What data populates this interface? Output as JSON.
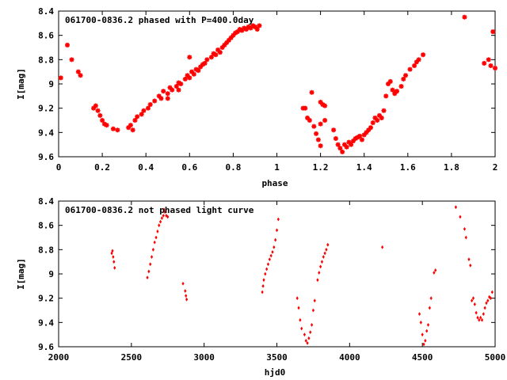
{
  "colors": {
    "points": "#ff0000",
    "axes": "#000000",
    "background": "#ffffff"
  },
  "chart_data": [
    {
      "type": "scatter",
      "title": "061700-0836.2 phased with P=400.0day",
      "xlabel": "phase",
      "ylabel": "I[mag]",
      "xlim": [
        0,
        2
      ],
      "ylim": [
        9.6,
        8.4
      ],
      "y_inverted": true,
      "xticks": [
        "0",
        "0.2",
        "0.4",
        "0.6",
        "0.8",
        "1",
        "1.2",
        "1.4",
        "1.6",
        "1.8",
        "2"
      ],
      "yticks": [
        "8.4",
        "8.6",
        "8.8",
        "9",
        "9.2",
        "9.4",
        "9.6"
      ],
      "grid": false,
      "marker": "star",
      "series": [
        {
          "points": [
            [
              0.01,
              8.95
            ],
            [
              0.04,
              8.68
            ],
            [
              0.06,
              8.8
            ],
            [
              0.09,
              8.9
            ],
            [
              0.1,
              8.93
            ],
            [
              0.16,
              9.2
            ],
            [
              0.17,
              9.18
            ],
            [
              0.18,
              9.22
            ],
            [
              0.19,
              9.26
            ],
            [
              0.2,
              9.3
            ],
            [
              0.21,
              9.33
            ],
            [
              0.22,
              9.34
            ],
            [
              0.25,
              9.37
            ],
            [
              0.27,
              9.38
            ],
            [
              0.32,
              9.36
            ],
            [
              0.33,
              9.34
            ],
            [
              0.34,
              9.38
            ],
            [
              0.35,
              9.3
            ],
            [
              0.36,
              9.27
            ],
            [
              0.38,
              9.25
            ],
            [
              0.39,
              9.22
            ],
            [
              0.41,
              9.2
            ],
            [
              0.42,
              9.17
            ],
            [
              0.44,
              9.14
            ],
            [
              0.46,
              9.1
            ],
            [
              0.47,
              9.12
            ],
            [
              0.48,
              9.06
            ],
            [
              0.5,
              9.08
            ],
            [
              0.51,
              9.03
            ],
            [
              0.52,
              9.05
            ],
            [
              0.54,
              9.02
            ],
            [
              0.55,
              8.99
            ],
            [
              0.56,
              9.0
            ],
            [
              0.58,
              8.96
            ],
            [
              0.59,
              8.93
            ],
            [
              0.6,
              8.95
            ],
            [
              0.61,
              8.9
            ],
            [
              0.62,
              8.92
            ],
            [
              0.63,
              8.88
            ],
            [
              0.64,
              8.89
            ],
            [
              0.65,
              8.86
            ],
            [
              0.66,
              8.84
            ],
            [
              0.67,
              8.83
            ],
            [
              0.68,
              8.8
            ],
            [
              0.7,
              8.78
            ],
            [
              0.71,
              8.75
            ],
            [
              0.72,
              8.76
            ],
            [
              0.73,
              8.72
            ],
            [
              0.74,
              8.74
            ],
            [
              0.75,
              8.7
            ],
            [
              0.76,
              8.68
            ],
            [
              0.77,
              8.66
            ],
            [
              0.78,
              8.64
            ],
            [
              0.79,
              8.62
            ],
            [
              0.8,
              8.6
            ],
            [
              0.81,
              8.58
            ],
            [
              0.82,
              8.57
            ],
            [
              0.83,
              8.55
            ],
            [
              0.84,
              8.56
            ],
            [
              0.85,
              8.54
            ],
            [
              0.86,
              8.55
            ],
            [
              0.87,
              8.53
            ],
            [
              0.88,
              8.54
            ],
            [
              0.89,
              8.52
            ],
            [
              0.9,
              8.53
            ],
            [
              0.91,
              8.55
            ],
            [
              0.92,
              8.52
            ],
            [
              0.6,
              8.78
            ],
            [
              0.55,
              9.05
            ],
            [
              0.5,
              9.12
            ],
            [
              1.12,
              9.2
            ],
            [
              1.13,
              9.2
            ],
            [
              1.14,
              9.28
            ],
            [
              1.15,
              9.3
            ],
            [
              1.16,
              9.07
            ],
            [
              1.17,
              9.35
            ],
            [
              1.18,
              9.41
            ],
            [
              1.19,
              9.46
            ],
            [
              1.2,
              9.15
            ],
            [
              1.21,
              9.17
            ],
            [
              1.22,
              9.18
            ],
            [
              1.2,
              9.33
            ],
            [
              1.2,
              9.51
            ],
            [
              1.22,
              9.3
            ],
            [
              1.26,
              9.38
            ],
            [
              1.27,
              9.45
            ],
            [
              1.28,
              9.5
            ],
            [
              1.29,
              9.53
            ],
            [
              1.3,
              9.56
            ],
            [
              1.31,
              9.5
            ],
            [
              1.32,
              9.52
            ],
            [
              1.33,
              9.48
            ],
            [
              1.34,
              9.5
            ],
            [
              1.35,
              9.47
            ],
            [
              1.36,
              9.45
            ],
            [
              1.37,
              9.44
            ],
            [
              1.38,
              9.43
            ],
            [
              1.39,
              9.46
            ],
            [
              1.4,
              9.42
            ],
            [
              1.41,
              9.4
            ],
            [
              1.42,
              9.38
            ],
            [
              1.43,
              9.36
            ],
            [
              1.44,
              9.32
            ],
            [
              1.45,
              9.28
            ],
            [
              1.46,
              9.3
            ],
            [
              1.47,
              9.26
            ],
            [
              1.48,
              9.28
            ],
            [
              1.49,
              9.22
            ],
            [
              1.5,
              9.1
            ],
            [
              1.51,
              9.0
            ],
            [
              1.52,
              8.98
            ],
            [
              1.53,
              9.05
            ],
            [
              1.54,
              9.08
            ],
            [
              1.55,
              9.06
            ],
            [
              1.57,
              9.02
            ],
            [
              1.58,
              8.96
            ],
            [
              1.59,
              8.93
            ],
            [
              1.61,
              8.88
            ],
            [
              1.63,
              8.85
            ],
            [
              1.64,
              8.82
            ],
            [
              1.65,
              8.8
            ],
            [
              1.67,
              8.76
            ],
            [
              1.86,
              8.45
            ],
            [
              1.95,
              8.83
            ],
            [
              1.97,
              8.8
            ],
            [
              1.98,
              8.85
            ],
            [
              1.99,
              8.57
            ],
            [
              2.0,
              8.87
            ]
          ]
        }
      ]
    },
    {
      "type": "scatter",
      "title": "061700-0836.2 not phased light curve",
      "xlabel": "hjd0",
      "ylabel": "I[mag]",
      "xlim": [
        2000,
        5000
      ],
      "ylim": [
        9.6,
        8.4
      ],
      "y_inverted": true,
      "xticks": [
        "2000",
        "2500",
        "3000",
        "3500",
        "4000",
        "4500",
        "5000"
      ],
      "yticks": [
        "8.4",
        "8.6",
        "8.8",
        "9",
        "9.2",
        "9.4",
        "9.6"
      ],
      "grid": false,
      "marker": "diamond",
      "series": [
        {
          "points": [
            [
              2365,
              8.83
            ],
            [
              2370,
              8.81
            ],
            [
              2375,
              8.86
            ],
            [
              2380,
              8.9
            ],
            [
              2385,
              8.95
            ],
            [
              2610,
              9.03
            ],
            [
              2620,
              8.98
            ],
            [
              2630,
              8.92
            ],
            [
              2640,
              8.86
            ],
            [
              2650,
              8.8
            ],
            [
              2660,
              8.74
            ],
            [
              2670,
              8.7
            ],
            [
              2680,
              8.65
            ],
            [
              2690,
              8.6
            ],
            [
              2700,
              8.57
            ],
            [
              2710,
              8.54
            ],
            [
              2720,
              8.52
            ],
            [
              2730,
              8.49
            ],
            [
              2740,
              8.52
            ],
            [
              2750,
              8.53
            ],
            [
              2725,
              8.47
            ],
            [
              2855,
              9.08
            ],
            [
              2870,
              9.14
            ],
            [
              2875,
              9.18
            ],
            [
              2880,
              9.21
            ],
            [
              3400,
              9.15
            ],
            [
              3405,
              9.1
            ],
            [
              3410,
              9.05
            ],
            [
              3420,
              9.0
            ],
            [
              3430,
              8.96
            ],
            [
              3440,
              8.92
            ],
            [
              3450,
              8.88
            ],
            [
              3460,
              8.85
            ],
            [
              3470,
              8.82
            ],
            [
              3480,
              8.78
            ],
            [
              3490,
              8.72
            ],
            [
              3500,
              8.64
            ],
            [
              3510,
              8.55
            ],
            [
              3640,
              9.2
            ],
            [
              3650,
              9.28
            ],
            [
              3660,
              9.38
            ],
            [
              3670,
              9.45
            ],
            [
              3690,
              9.5
            ],
            [
              3700,
              9.55
            ],
            [
              3710,
              9.57
            ],
            [
              3720,
              9.53
            ],
            [
              3730,
              9.48
            ],
            [
              3740,
              9.42
            ],
            [
              3750,
              9.3
            ],
            [
              3760,
              9.22
            ],
            [
              3780,
              9.05
            ],
            [
              3790,
              8.99
            ],
            [
              3800,
              8.94
            ],
            [
              3810,
              8.9
            ],
            [
              3820,
              8.86
            ],
            [
              3830,
              8.83
            ],
            [
              3840,
              8.8
            ],
            [
              3850,
              8.76
            ],
            [
              4225,
              8.78
            ],
            [
              4480,
              9.33
            ],
            [
              4490,
              9.4
            ],
            [
              4500,
              9.5
            ],
            [
              4510,
              9.58
            ],
            [
              4520,
              9.55
            ],
            [
              4530,
              9.47
            ],
            [
              4540,
              9.42
            ],
            [
              4550,
              9.28
            ],
            [
              4560,
              9.2
            ],
            [
              4580,
              8.99
            ],
            [
              4590,
              8.97
            ],
            [
              4730,
              8.45
            ],
            [
              4760,
              8.53
            ],
            [
              4790,
              8.63
            ],
            [
              4800,
              8.7
            ],
            [
              4820,
              8.88
            ],
            [
              4830,
              8.93
            ],
            [
              4840,
              9.22
            ],
            [
              4850,
              9.2
            ],
            [
              4860,
              9.25
            ],
            [
              4870,
              9.32
            ],
            [
              4880,
              9.36
            ],
            [
              4890,
              9.38
            ],
            [
              4900,
              9.36
            ],
            [
              4910,
              9.38
            ],
            [
              4920,
              9.33
            ],
            [
              4930,
              9.28
            ],
            [
              4940,
              9.24
            ],
            [
              4950,
              9.22
            ],
            [
              4960,
              9.19
            ],
            [
              4970,
              9.2
            ],
            [
              4980,
              9.15
            ]
          ]
        }
      ]
    }
  ]
}
